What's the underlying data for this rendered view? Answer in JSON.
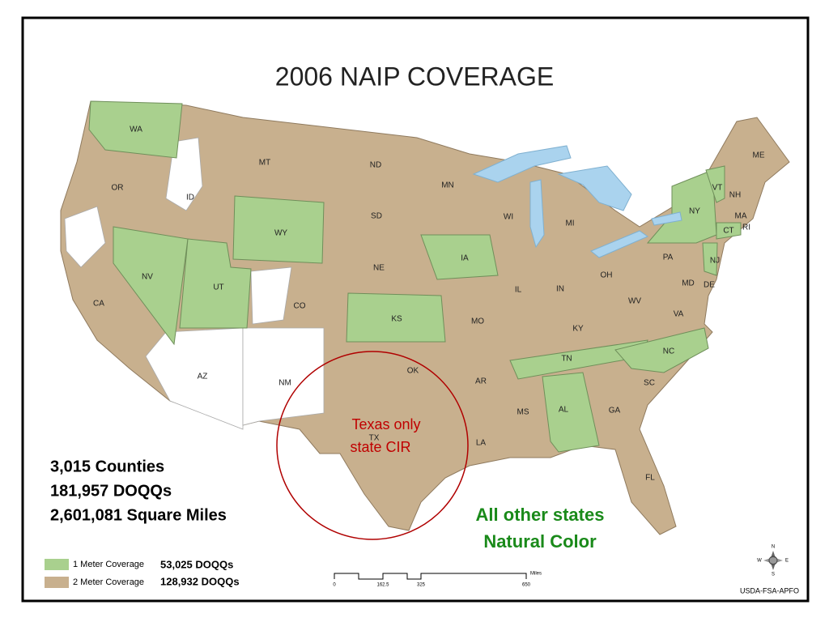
{
  "title": "2006 NAIP COVERAGE",
  "states": [
    "WA",
    "MT",
    "ND",
    "MN",
    "ME",
    "OR",
    "ID",
    "SD",
    "WI",
    "MI",
    "VT",
    "NH",
    "NY",
    "MA",
    "CT",
    "RI",
    "WY",
    "NE",
    "IA",
    "PA",
    "NJ",
    "NV",
    "UT",
    "IL",
    "IN",
    "OH",
    "MD",
    "DE",
    "CA",
    "CO",
    "KS",
    "MO",
    "WV",
    "KY",
    "VA",
    "TN",
    "NC",
    "AZ",
    "NM",
    "OK",
    "AR",
    "SC",
    "TX",
    "MS",
    "AL",
    "GA",
    "LA",
    "FL"
  ],
  "stats": [
    "3,015 Counties",
    "181,957 DOQQs",
    "2,601,081 Square Miles"
  ],
  "legend": [
    {
      "label": "1 Meter Coverage",
      "count": "53,025 DOQQs"
    },
    {
      "label": "2 Meter Coverage",
      "count": "128,932 DOQQs"
    }
  ],
  "annotations": {
    "texas": [
      "Texas only",
      "state CIR"
    ],
    "others": [
      "All other states",
      "Natural Color"
    ]
  },
  "scale": {
    "ticks": [
      "0",
      "162.5",
      "325",
      "650"
    ],
    "unit": "Miles"
  },
  "compass": [
    "N",
    "E",
    "S",
    "W"
  ],
  "credit": "USDA-FSA-APFO"
}
